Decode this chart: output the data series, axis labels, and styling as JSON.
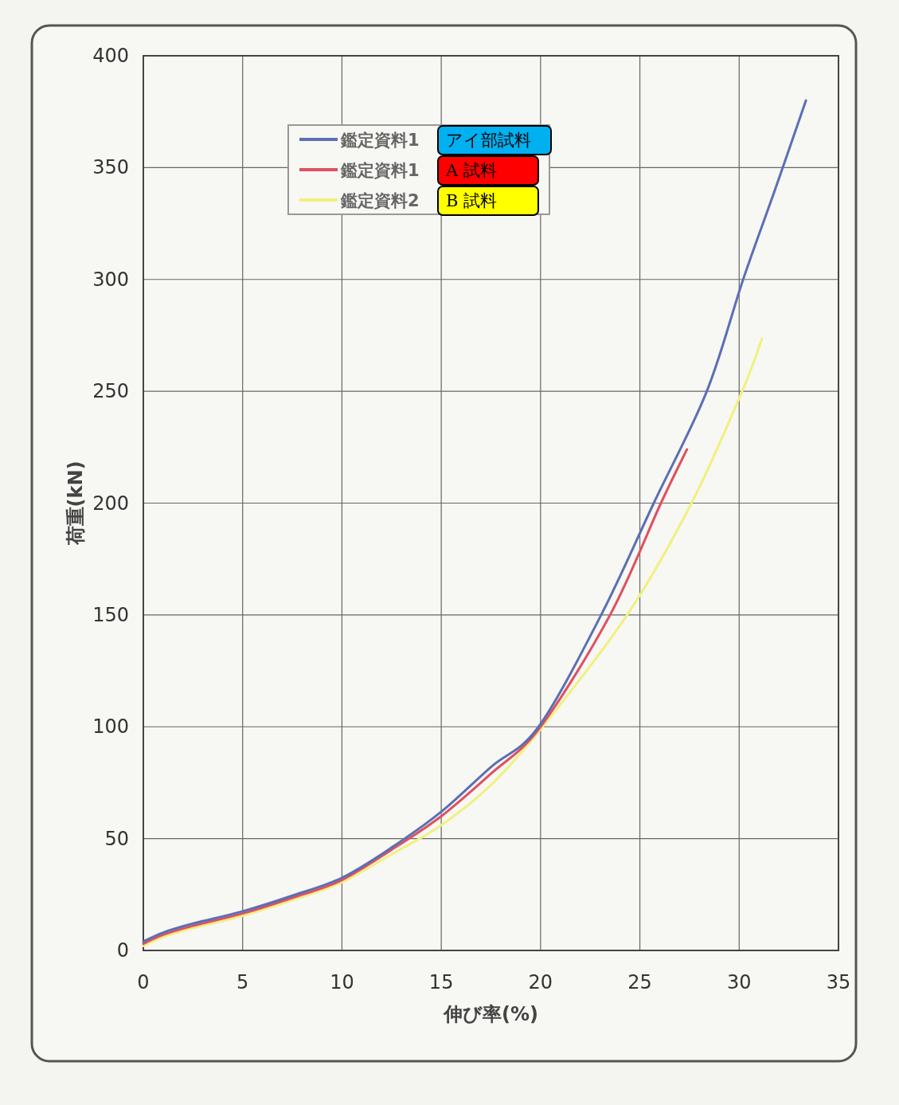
{
  "chart_data": {
    "type": "line",
    "xlabel": "伸び率(%)",
    "ylabel": "荷重(kN)",
    "xlim": [
      0,
      35
    ],
    "xticks": [
      0,
      5,
      10,
      15,
      20,
      25,
      30,
      35
    ],
    "ylim": [
      0,
      400
    ],
    "yticks": [
      0,
      50,
      100,
      150,
      200,
      250,
      300,
      350,
      400
    ],
    "grid": true,
    "legend": "top left",
    "marker": "none",
    "line_style": "solid",
    "series": [
      {
        "name": "鑑定資料1",
        "color": "#5a6fb4",
        "x": [
          0,
          1,
          2.5,
          5,
          7.5,
          10,
          12.5,
          15,
          17.5,
          19.9,
          23.05,
          25.7,
          28.37,
          30.2,
          31.8,
          33.36
        ],
        "values": [
          4,
          8,
          12,
          17.5,
          24.5,
          32.5,
          46,
          62,
          82,
          100,
          150,
          200,
          250,
          300,
          340,
          380
        ]
      },
      {
        "name": "鑑定資料1",
        "color": "#e05060",
        "x": [
          0,
          1,
          2.5,
          5,
          7.5,
          10,
          12.5,
          15,
          17.5,
          20.0,
          23.5,
          26.06,
          27.37
        ],
        "values": [
          3,
          7,
          11,
          16.5,
          23.5,
          31.5,
          45,
          60,
          79,
          100,
          150,
          200,
          224
        ]
      },
      {
        "name": "鑑定資料2",
        "color": "#f0f080",
        "x": [
          0,
          1,
          2.5,
          5,
          7.5,
          10,
          12.5,
          15,
          17.5,
          20.1,
          24.36,
          27.6,
          30.15,
          31.15
        ],
        "values": [
          2,
          6,
          10,
          15.5,
          22.5,
          30.5,
          43,
          56,
          74,
          100,
          150,
          200,
          250,
          273.5
        ]
      }
    ],
    "annotations": [
      "アイ部試料",
      "A 試料",
      "B 試料"
    ]
  }
}
